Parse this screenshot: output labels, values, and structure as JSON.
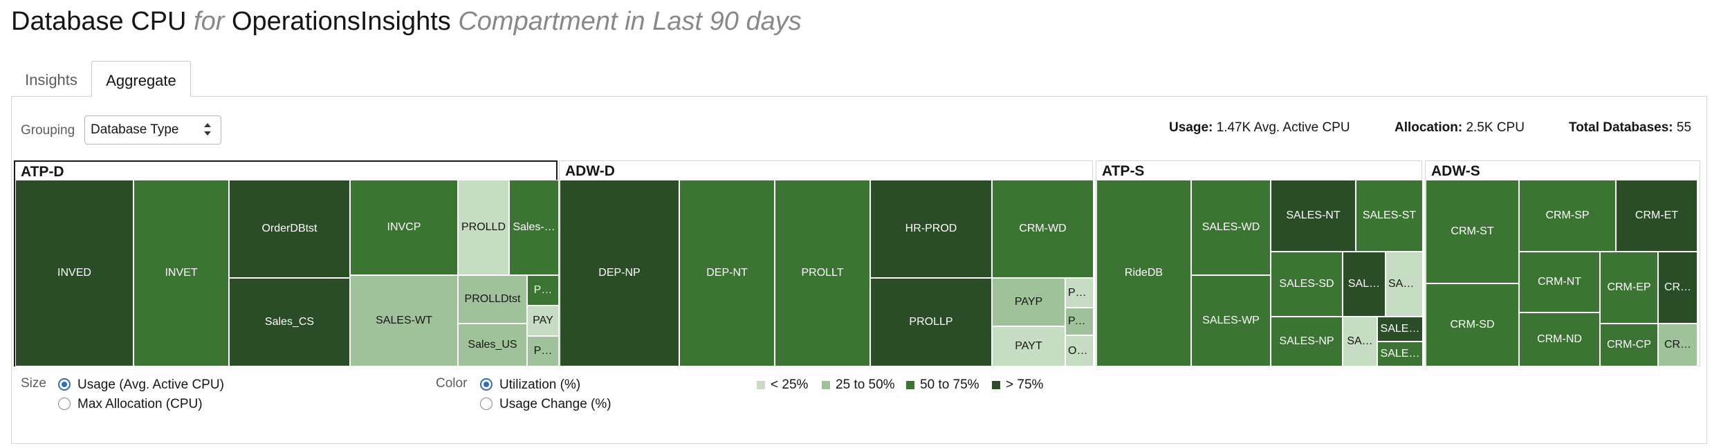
{
  "header": {
    "metric": "Database CPU",
    "for_word": "for",
    "compartment_name": "OperationsInsights",
    "suffix": "Compartment in Last 90 days"
  },
  "tabs": [
    {
      "label": "Insights",
      "active": false
    },
    {
      "label": "Aggregate",
      "active": true
    }
  ],
  "grouping": {
    "label": "Grouping",
    "selected": "Database Type"
  },
  "stats": {
    "usage_label": "Usage:",
    "usage_value": "1.47K Avg. Active CPU",
    "allocation_label": "Allocation:",
    "allocation_value": "2.5K CPU",
    "total_label": "Total Databases:",
    "total_value": "55"
  },
  "treemap": {
    "groups": [
      {
        "name": "ATP-D",
        "cells": [
          {
            "label": "INVED",
            "level": 4
          },
          {
            "label": "INVET",
            "level": 3
          },
          {
            "label": "OrderDBtst",
            "level": 4
          },
          {
            "label": "Sales_CS",
            "level": 4
          },
          {
            "label": "INVCP",
            "level": 3
          },
          {
            "label": "SALES-WT",
            "level": 2
          },
          {
            "label": "PROLLD",
            "level": 1
          },
          {
            "label": "Sales-…",
            "level": 3
          },
          {
            "label": "PROLLDtst",
            "level": 2
          },
          {
            "label": "P…",
            "level": 3
          },
          {
            "label": "PAY",
            "level": 1
          },
          {
            "label": "Sales_US",
            "level": 2
          },
          {
            "label": "P…",
            "level": 2
          }
        ]
      },
      {
        "name": "ADW-D",
        "cells": [
          {
            "label": "DEP-NP",
            "level": 4
          },
          {
            "label": "DEP-NT",
            "level": 3
          },
          {
            "label": "PROLLT",
            "level": 3
          },
          {
            "label": "HR-PROD",
            "level": 4
          },
          {
            "label": "PROLLP",
            "level": 4
          },
          {
            "label": "CRM-WD",
            "level": 3
          },
          {
            "label": "PAYP",
            "level": 2
          },
          {
            "label": "Pa…",
            "level": 1
          },
          {
            "label": "PA…",
            "level": 2
          },
          {
            "label": "PAYT",
            "level": 1
          },
          {
            "label": "Or…",
            "level": 1
          }
        ]
      },
      {
        "name": "ATP-S",
        "cells": [
          {
            "label": "RideDB",
            "level": 3
          },
          {
            "label": "SALES-WD",
            "level": 3
          },
          {
            "label": "SALES-WP",
            "level": 3
          },
          {
            "label": "SALES-NT",
            "level": 4
          },
          {
            "label": "SALES-ST",
            "level": 3
          },
          {
            "label": "SALES-SD",
            "level": 3
          },
          {
            "label": "SAL…",
            "level": 4
          },
          {
            "label": "SAL…",
            "level": 1
          },
          {
            "label": "SALES-NP",
            "level": 3
          },
          {
            "label": "SA…",
            "level": 1
          },
          {
            "label": "SALE…",
            "level": 4
          },
          {
            "label": "SALE…",
            "level": 3
          }
        ]
      },
      {
        "name": "ADW-S",
        "cells": [
          {
            "label": "CRM-ST",
            "level": 3
          },
          {
            "label": "CRM-SD",
            "level": 3
          },
          {
            "label": "CRM-SP",
            "level": 3
          },
          {
            "label": "CRM-ET",
            "level": 4
          },
          {
            "label": "CRM-NT",
            "level": 3
          },
          {
            "label": "CRM-EP",
            "level": 3
          },
          {
            "label": "CR…",
            "level": 4
          },
          {
            "label": "CRM-ND",
            "level": 3
          },
          {
            "label": "CRM-CP",
            "level": 3
          },
          {
            "label": "CR…",
            "level": 2
          }
        ]
      }
    ]
  },
  "size_control": {
    "label": "Size",
    "options": [
      {
        "label": "Usage (Avg. Active CPU)",
        "selected": true
      },
      {
        "label": "Max Allocation (CPU)",
        "selected": false
      }
    ]
  },
  "color_control": {
    "label": "Color",
    "options": [
      {
        "label": "Utilization (%)",
        "selected": true
      },
      {
        "label": "Usage Change (%)",
        "selected": false
      }
    ]
  },
  "legend": [
    {
      "label": "< 25%",
      "color": "#c6dcc3"
    },
    {
      "label": "25 to 50%",
      "color": "#9fc29a"
    },
    {
      "label": "50 to 75%",
      "color": "#3c7434"
    },
    {
      "label": "> 75%",
      "color": "#2a4d27"
    }
  ]
}
